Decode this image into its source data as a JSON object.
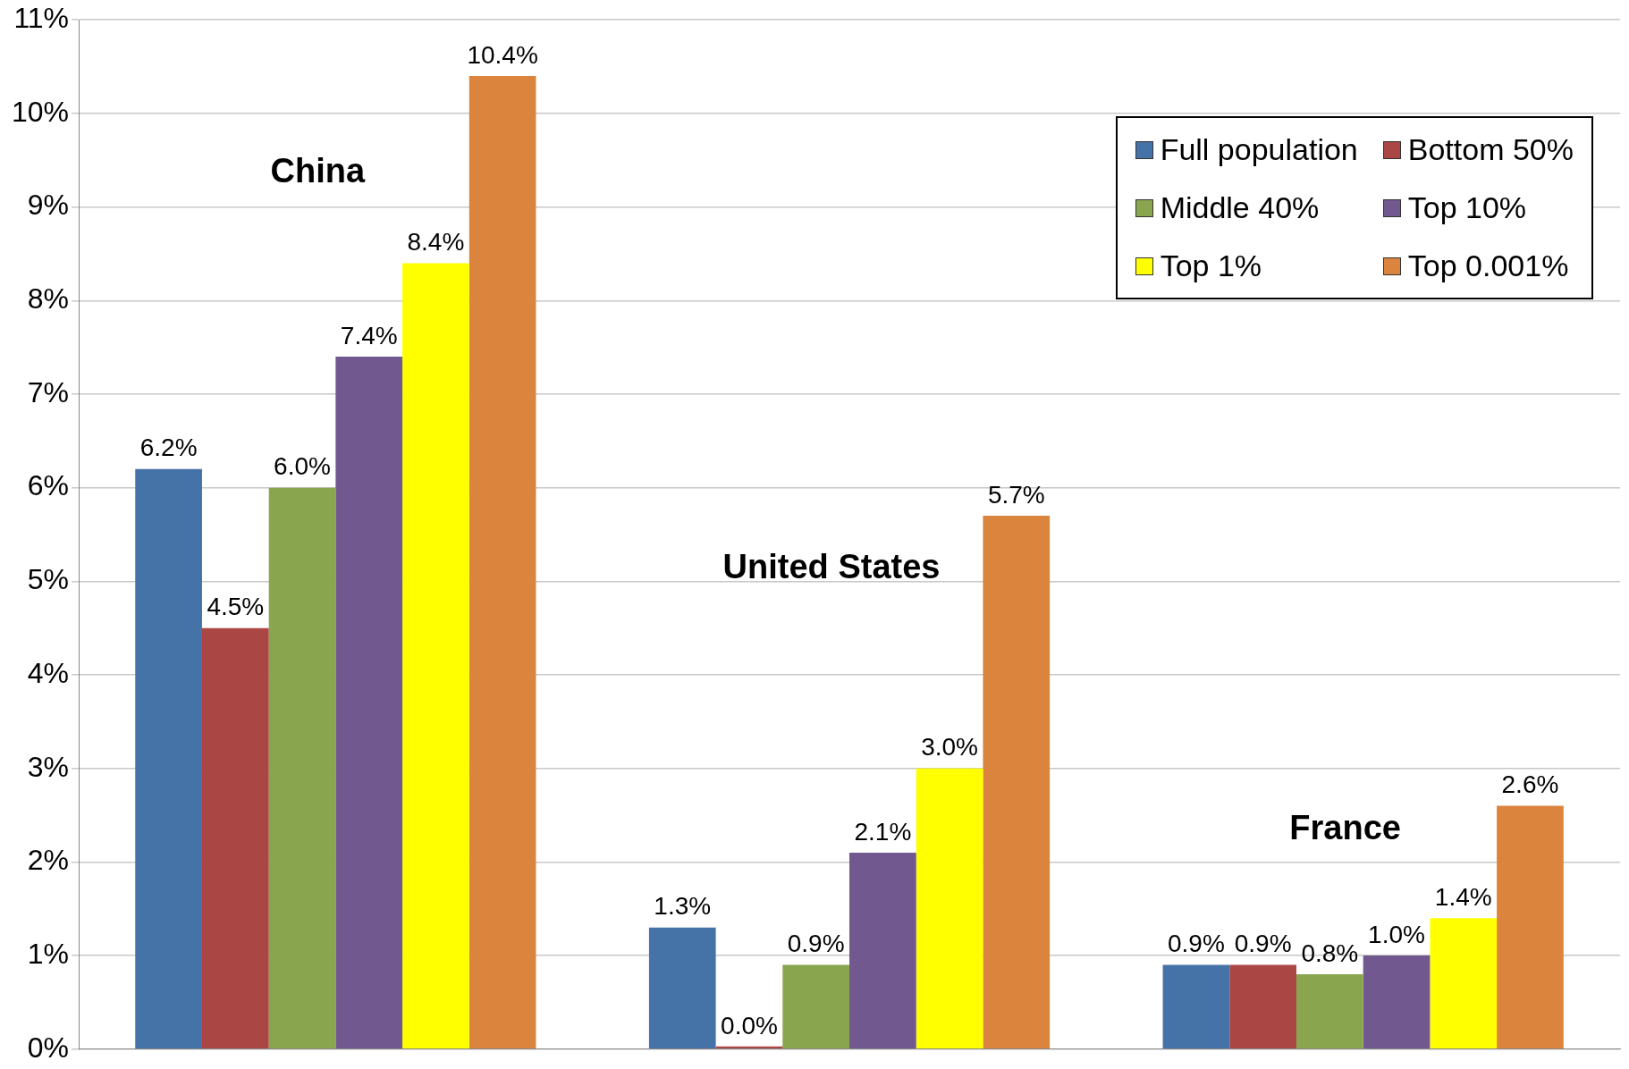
{
  "chart_data": {
    "type": "bar",
    "categories": [
      null,
      null,
      null
    ],
    "series": [
      {
        "name": "Full population",
        "color": "#4572a7",
        "values": [
          6.2,
          1.3,
          0.9
        ],
        "value_labels": [
          "6.2%",
          "1.3%",
          "0.9%"
        ]
      },
      {
        "name": "Bottom 50%",
        "color": "#aa4643",
        "values": [
          4.5,
          0.0,
          0.9
        ],
        "value_labels": [
          "4.5%",
          "0.0%",
          "0.9%"
        ]
      },
      {
        "name": "Middle 40%",
        "color": "#89a54e",
        "values": [
          6.0,
          0.9,
          0.8
        ],
        "value_labels": [
          "6.0%",
          "0.9%",
          "0.8%"
        ]
      },
      {
        "name": "Top 10%",
        "color": "#71588f",
        "values": [
          7.4,
          2.1,
          1.0
        ],
        "value_labels": [
          "7.4%",
          "2.1%",
          "1.0%"
        ]
      },
      {
        "name": "Top 1%",
        "color": "#ffff00",
        "values": [
          8.4,
          3.0,
          1.4
        ],
        "value_labels": [
          "8.4%",
          "3.0%",
          "1.4%"
        ]
      },
      {
        "name": "Top 0.001%",
        "color": "#db843d",
        "values": [
          10.4,
          5.7,
          2.6
        ],
        "value_labels": [
          "10.4%",
          "5.7%",
          "2.6%"
        ]
      }
    ],
    "ylim": [
      0,
      11
    ],
    "yticks": [
      {
        "value": 0,
        "label": "0%"
      },
      {
        "value": 1,
        "label": "1%"
      },
      {
        "value": 2,
        "label": "2%"
      },
      {
        "value": 3,
        "label": "3%"
      },
      {
        "value": 4,
        "label": "4%"
      },
      {
        "value": 5,
        "label": "5%"
      },
      {
        "value": 6,
        "label": "6%"
      },
      {
        "value": 7,
        "label": "7%"
      },
      {
        "value": 8,
        "label": "8%"
      },
      {
        "value": 9,
        "label": "9%"
      },
      {
        "value": 10,
        "label": "10%"
      },
      {
        "value": 11,
        "label": "11%"
      }
    ],
    "annotations": [
      "China",
      "United States",
      "France"
    ],
    "grid": "y",
    "legend": "top right",
    "tick_labels": "y"
  }
}
